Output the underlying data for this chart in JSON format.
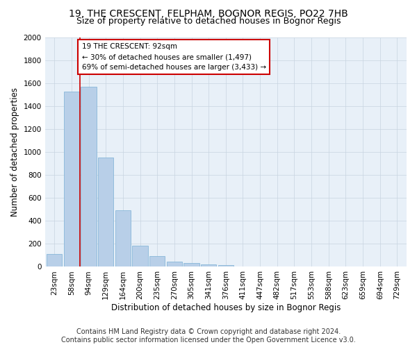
{
  "title1": "19, THE CRESCENT, FELPHAM, BOGNOR REGIS, PO22 7HB",
  "title2": "Size of property relative to detached houses in Bognor Regis",
  "xlabel": "Distribution of detached houses by size in Bognor Regis",
  "ylabel": "Number of detached properties",
  "footnote": "Contains HM Land Registry data © Crown copyright and database right 2024.\nContains public sector information licensed under the Open Government Licence v3.0.",
  "bar_labels": [
    "23sqm",
    "58sqm",
    "94sqm",
    "129sqm",
    "164sqm",
    "200sqm",
    "235sqm",
    "270sqm",
    "305sqm",
    "341sqm",
    "376sqm",
    "411sqm",
    "447sqm",
    "482sqm",
    "517sqm",
    "553sqm",
    "588sqm",
    "623sqm",
    "659sqm",
    "694sqm",
    "729sqm"
  ],
  "bar_values": [
    110,
    1530,
    1570,
    950,
    490,
    185,
    95,
    45,
    35,
    22,
    14,
    0,
    0,
    0,
    0,
    0,
    0,
    0,
    0,
    0,
    0
  ],
  "bar_color": "#b8cfe8",
  "bar_edgecolor": "#7aafd4",
  "vline_color": "#cc0000",
  "annotation_text": "19 THE CRESCENT: 92sqm\n← 30% of detached houses are smaller (1,497)\n69% of semi-detached houses are larger (3,433) →",
  "annotation_box_color": "#cc0000",
  "ylim": [
    0,
    2000
  ],
  "yticks": [
    0,
    200,
    400,
    600,
    800,
    1000,
    1200,
    1400,
    1600,
    1800,
    2000
  ],
  "background_color": "#ffffff",
  "axes_facecolor": "#e8f0f8",
  "grid_color": "#c8d4e0",
  "title1_fontsize": 10,
  "title2_fontsize": 9,
  "axis_label_fontsize": 8.5,
  "tick_fontsize": 7.5,
  "footnote_fontsize": 7
}
